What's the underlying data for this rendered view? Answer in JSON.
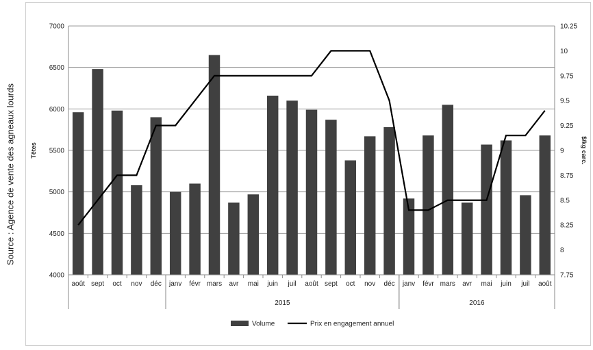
{
  "source_note": "Source : Agence de vente des agneaux lourds",
  "chart_data": {
    "type": "bar",
    "categories": [
      "août",
      "sept",
      "oct",
      "nov",
      "déc",
      "janv",
      "févr",
      "mars",
      "avr",
      "mai",
      "juin",
      "juil",
      "août",
      "sept",
      "oct",
      "nov",
      "déc",
      "janv",
      "févr",
      "mars",
      "avr",
      "mai",
      "juin",
      "juil",
      "août"
    ],
    "groups": [
      {
        "label": "",
        "start": 0,
        "end": 4
      },
      {
        "label": "2015",
        "start": 5,
        "end": 16
      },
      {
        "label": "2016",
        "start": 17,
        "end": 24
      }
    ],
    "series": [
      {
        "name": "Volume",
        "kind": "bar",
        "axis": "left",
        "color": "#404040",
        "values": [
          5960,
          6480,
          5980,
          5080,
          5900,
          5000,
          5100,
          6650,
          4870,
          4970,
          6160,
          6100,
          5990,
          5870,
          5380,
          5670,
          5780,
          4920,
          5680,
          6050,
          4870,
          5570,
          5620,
          4960,
          5680
        ]
      },
      {
        "name": "Prix en engagement annuel",
        "kind": "line",
        "axis": "right",
        "color": "#000000",
        "values": [
          8.25,
          8.5,
          8.75,
          8.75,
          9.25,
          9.25,
          9.5,
          9.75,
          9.75,
          9.75,
          9.75,
          9.75,
          9.75,
          10.0,
          10.0,
          10.0,
          9.5,
          8.4,
          8.4,
          8.5,
          8.5,
          8.5,
          9.15,
          9.15,
          9.4
        ]
      }
    ],
    "y_left": {
      "label": "Têtes",
      "min": 4000,
      "max": 7000,
      "ticks": [
        4000,
        4500,
        5000,
        5500,
        6000,
        6500,
        7000
      ]
    },
    "y_right": {
      "label": "$/kg carc.",
      "min": 7.75,
      "max": 10.25,
      "ticks": [
        "7.75",
        "8",
        "8.25",
        "8.5",
        "8.75",
        "9",
        "9.25",
        "9.5",
        "9.75",
        "10",
        "10.25"
      ]
    },
    "grid": true,
    "legend_position": "bottom"
  }
}
